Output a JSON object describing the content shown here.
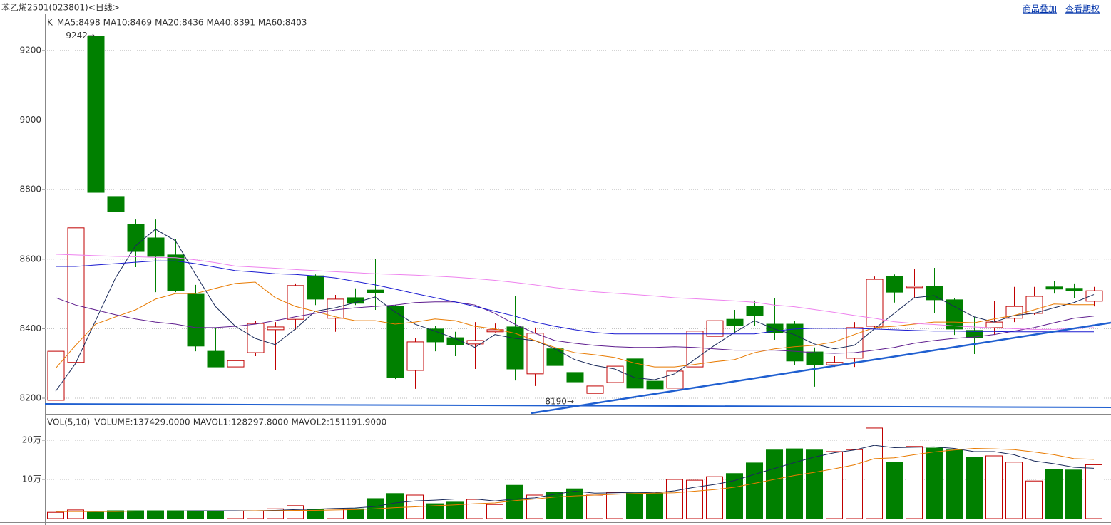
{
  "header": {
    "title": "苯乙烯2501(023801)<日线>",
    "links": [
      "商品叠加",
      "查看期权"
    ]
  },
  "chart_data": [
    {
      "type": "candlestick",
      "legend_prefix": "K",
      "up_color": "#c00000",
      "down_color": "#008000",
      "categories": [
        null,
        null,
        null,
        null,
        null,
        null,
        null,
        null,
        null,
        null,
        null,
        null,
        null,
        null,
        null,
        null,
        null,
        null,
        null,
        null,
        null,
        null,
        null,
        null,
        null,
        null,
        null,
        null,
        null,
        null,
        null,
        null,
        null,
        null,
        null,
        null,
        null,
        null,
        null,
        null,
        null,
        null,
        null,
        null,
        null,
        null,
        null,
        null,
        null,
        null,
        null,
        null,
        null
      ],
      "open": [
        8194,
        8303,
        9240,
        8780,
        8700,
        8661,
        8612,
        8499,
        8335,
        8290,
        8331,
        8397,
        8427,
        8552,
        8430,
        8489,
        8511,
        8464,
        8280,
        8399,
        8374,
        8356,
        8391,
        8405,
        8270,
        8342,
        8274,
        8214,
        8245,
        8313,
        8249,
        8229,
        8290,
        8378,
        8427,
        8464,
        8413,
        8413,
        8333,
        8296,
        8315,
        8407,
        8550,
        8518,
        8522,
        8483,
        8395,
        8403,
        8430,
        8444,
        8520,
        8516,
        8479
      ],
      "high": [
        8345,
        8710,
        9242,
        8780,
        8714,
        8714,
        8659,
        8526,
        8403,
        8308,
        8423,
        8419,
        8530,
        8556,
        8497,
        8516,
        8601,
        8468,
        8372,
        8407,
        8391,
        8419,
        8415,
        8495,
        8403,
        8382,
        8311,
        8263,
        8321,
        8321,
        8290,
        8331,
        8413,
        8454,
        8454,
        8481,
        8489,
        8423,
        8346,
        8321,
        8419,
        8550,
        8556,
        8571,
        8575,
        8487,
        8434,
        8479,
        8520,
        8520,
        8536,
        8530,
        8520
      ],
      "low": [
        8194,
        8280,
        8768,
        8673,
        8577,
        8505,
        8505,
        8335,
        8290,
        8290,
        8321,
        8280,
        8397,
        8468,
        8391,
        8468,
        8454,
        8255,
        8227,
        8335,
        8321,
        8284,
        8389,
        8251,
        8235,
        8263,
        8190,
        8208,
        8239,
        8202,
        8220,
        8222,
        8280,
        8372,
        8386,
        8409,
        8368,
        8296,
        8233,
        8290,
        8290,
        8403,
        8475,
        8489,
        8444,
        8382,
        8327,
        8382,
        8419,
        8440,
        8501,
        8489,
        8464
      ],
      "close": [
        8335,
        8690,
        8792,
        8737,
        8622,
        8608,
        8509,
        8350,
        8290,
        8308,
        8415,
        8405,
        8524,
        8485,
        8485,
        8473,
        8503,
        8259,
        8362,
        8362,
        8354,
        8366,
        8397,
        8284,
        8387,
        8294,
        8247,
        8235,
        8292,
        8229,
        8227,
        8278,
        8393,
        8423,
        8409,
        8438,
        8389,
        8307,
        8296,
        8303,
        8403,
        8542,
        8505,
        8522,
        8483,
        8399,
        8374,
        8419,
        8464,
        8493,
        8514,
        8509,
        8509
      ],
      "series": [
        {
          "name": "MA5:8498",
          "color": "#1a2a5a",
          "values": [
            8220,
            8300,
            8423,
            8546,
            8638,
            8686,
            8653,
            8557,
            8464,
            8407,
            8372,
            8354,
            8399,
            8450,
            8460,
            8475,
            8491,
            8448,
            8413,
            8393,
            8372,
            8346,
            8383,
            8372,
            8366,
            8342,
            8311,
            8294,
            8284,
            8259,
            8253,
            8270,
            8311,
            8352,
            8389,
            8423,
            8399,
            8383,
            8356,
            8342,
            8352,
            8399,
            8444,
            8489,
            8495,
            8464,
            8434,
            8419,
            8438,
            8444,
            8460,
            8475,
            8498
          ]
        },
        {
          "name": "MA10:8469",
          "color": "#e87a00",
          "values": [
            8286,
            8352,
            8413,
            8434,
            8454,
            8485,
            8501,
            8501,
            8516,
            8530,
            8534,
            8489,
            8464,
            8450,
            8434,
            8423,
            8423,
            8413,
            8419,
            8428,
            8423,
            8407,
            8399,
            8387,
            8366,
            8346,
            8331,
            8325,
            8317,
            8301,
            8290,
            8290,
            8297,
            8305,
            8311,
            8331,
            8342,
            8348,
            8352,
            8362,
            8383,
            8403,
            8407,
            8413,
            8419,
            8419,
            8417,
            8428,
            8438,
            8454,
            8471,
            8469,
            8469
          ]
        },
        {
          "name": "MA20:8436",
          "color": "#5e1d8e",
          "values": [
            8489,
            8468,
            8454,
            8440,
            8428,
            8419,
            8413,
            8403,
            8403,
            8407,
            8413,
            8423,
            8434,
            8444,
            8454,
            8460,
            8464,
            8468,
            8475,
            8477,
            8477,
            8468,
            8444,
            8413,
            8387,
            8366,
            8358,
            8352,
            8348,
            8346,
            8346,
            8348,
            8346,
            8342,
            8338,
            8338,
            8338,
            8335,
            8331,
            8329,
            8331,
            8338,
            8346,
            8358,
            8366,
            8372,
            8376,
            8383,
            8393,
            8403,
            8417,
            8430,
            8436
          ]
        },
        {
          "name": "MA40:8391",
          "color": "#1a1ad0",
          "values": [
            8579,
            8579,
            8583,
            8587,
            8591,
            8595,
            8595,
            8587,
            8577,
            8567,
            8563,
            8558,
            8556,
            8552,
            8546,
            8536,
            8526,
            8514,
            8501,
            8489,
            8477,
            8464,
            8450,
            8436,
            8419,
            8407,
            8397,
            8389,
            8385,
            8385,
            8385,
            8385,
            8385,
            8385,
            8385,
            8385,
            8393,
            8399,
            8401,
            8401,
            8401,
            8399,
            8397,
            8395,
            8393,
            8393,
            8392,
            8392,
            8391,
            8391,
            8391,
            8391,
            8391
          ]
        },
        {
          "name": "MA60:8403",
          "color": "#ee82ee",
          "values": [
            8614,
            8612,
            8610,
            8608,
            8607,
            8605,
            8604,
            8598,
            8590,
            8580,
            8577,
            8574,
            8570,
            8567,
            8564,
            8561,
            8558,
            8556,
            8554,
            8551,
            8548,
            8544,
            8539,
            8533,
            8526,
            8518,
            8512,
            8506,
            8502,
            8498,
            8494,
            8489,
            8486,
            8483,
            8480,
            8476,
            8468,
            8463,
            8455,
            8447,
            8438,
            8430,
            8420,
            8415,
            8412,
            8408,
            8405,
            8402,
            8400,
            8398,
            8398,
            8400,
            8403
          ]
        }
      ],
      "annotations": [
        {
          "text": "9242→",
          "value": 9242
        },
        {
          "text": "8190→",
          "value": 8190
        }
      ],
      "ylim": [
        8157,
        9294
      ],
      "yticks": [
        8200,
        8400,
        8600,
        8800,
        9000,
        9200
      ],
      "grid": true
    },
    {
      "type": "bar",
      "legend_prefix": "VOL(5,10)",
      "up_color": "#c00000",
      "categories": [
        null,
        null,
        null,
        null,
        null,
        null,
        null,
        null,
        null,
        null,
        null,
        null,
        null,
        null,
        null,
        null,
        null,
        null,
        null,
        null,
        null,
        null,
        null,
        null,
        null,
        null,
        null,
        null,
        null,
        null,
        null,
        null,
        null,
        null,
        null,
        null,
        null,
        null,
        null,
        null,
        null,
        null,
        null,
        null,
        null,
        null,
        null,
        null,
        null,
        null,
        null,
        null,
        null
      ],
      "colors": [
        "#c00000",
        "#c00000",
        "#008000",
        "#008000",
        "#008000",
        "#008000",
        "#008000",
        "#008000",
        "#008000",
        "#c00000",
        "#c00000",
        "#c00000",
        "#c00000",
        "#008000",
        "#c00000",
        "#008000",
        "#008000",
        "#008000",
        "#c00000",
        "#008000",
        "#008000",
        "#c00000",
        "#c00000",
        "#008000",
        "#c00000",
        "#008000",
        "#008000",
        "#c00000",
        "#c00000",
        "#008000",
        "#008000",
        "#c00000",
        "#c00000",
        "#c00000",
        "#008000",
        "#008000",
        "#008000",
        "#008000",
        "#008000",
        "#c00000",
        "#c00000",
        "#c00000",
        "#008000",
        "#c00000",
        "#008000",
        "#008000",
        "#008000",
        "#c00000",
        "#c00000",
        "#c00000",
        "#008000",
        "#008000",
        "#c00000"
      ],
      "series": [
        {
          "name": "VOLUME:137429.0000",
          "color": "#555555",
          "kind": "bar",
          "values": [
            16000,
            22000,
            16000,
            20000,
            20000,
            20000,
            20000,
            20000,
            18000,
            20000,
            20000,
            25000,
            33000,
            24000,
            25000,
            25000,
            51000,
            64000,
            60000,
            38000,
            42000,
            49000,
            36000,
            85000,
            60000,
            67000,
            76000,
            60000,
            67000,
            65000,
            65000,
            100000,
            98000,
            107000,
            115000,
            142000,
            175000,
            178000,
            175000,
            171000,
            176000,
            231000,
            144000,
            184000,
            180000,
            175000,
            156000,
            160000,
            144000,
            96000,
            125000,
            124000,
            137429
          ]
        },
        {
          "name": "MAVOL1:128297.8000",
          "color": "#1a2a5a",
          "kind": "line",
          "values": [
            18000,
            19000,
            18000,
            19000,
            19000,
            19000,
            19000,
            20000,
            20000,
            20000,
            20000,
            21000,
            23000,
            24000,
            26000,
            27000,
            31000,
            40000,
            45000,
            47000,
            50000,
            50000,
            45000,
            50000,
            53000,
            62000,
            70000,
            65000,
            66000,
            67000,
            66000,
            71000,
            80000,
            87000,
            97000,
            113000,
            128000,
            143000,
            157000,
            168000,
            175000,
            187000,
            181000,
            182000,
            183000,
            179000,
            171000,
            171000,
            163000,
            147000,
            140000,
            131000,
            128297.8
          ]
        },
        {
          "name": "MAVOL2:151191.9000",
          "color": "#e87a00",
          "kind": "line",
          "values": [
            18000,
            18000,
            18000,
            18000,
            19000,
            19000,
            19000,
            19000,
            19000,
            19000,
            20000,
            20000,
            21000,
            21000,
            22000,
            23000,
            25000,
            28000,
            30000,
            33000,
            35000,
            38000,
            40000,
            46000,
            50000,
            55000,
            58000,
            60000,
            62000,
            64000,
            65000,
            66000,
            70000,
            74000,
            80000,
            90000,
            100000,
            110000,
            118000,
            127000,
            137000,
            153000,
            155000,
            163000,
            170000,
            175000,
            179000,
            178000,
            176000,
            170000,
            163000,
            153000,
            151191.9
          ]
        }
      ],
      "ylim": [
        0,
        260000
      ],
      "yticks": [
        {
          "value": 200000,
          "label": "20万"
        },
        {
          "value": 100000,
          "label": "10万"
        }
      ],
      "grid": true
    }
  ]
}
